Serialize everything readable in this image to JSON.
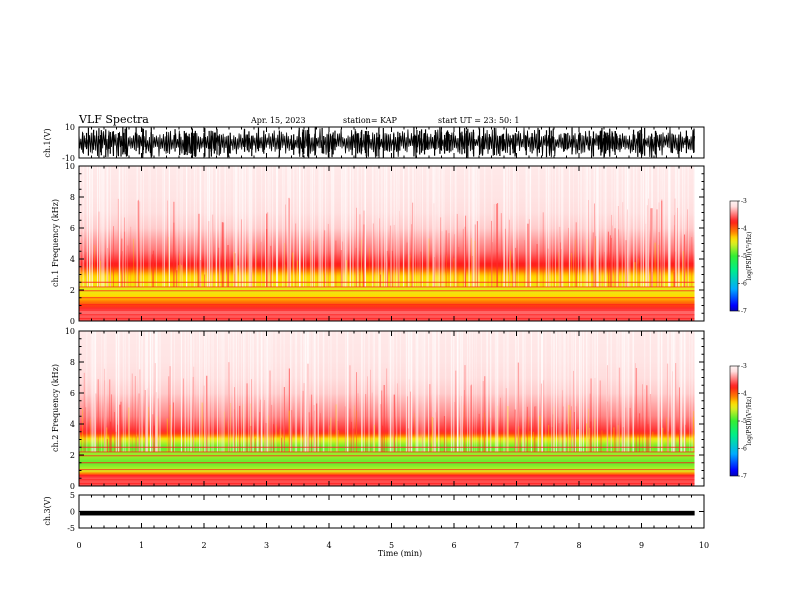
{
  "header": {
    "title": "VLF Spectra",
    "date": "Apr. 15, 2023",
    "station": "station= KAP",
    "start": "start  UT  =   23: 50: 1"
  },
  "colors": {
    "colormap": [
      "#08086e",
      "#0000ff",
      "#00aaff",
      "#00ee88",
      "#33ee33",
      "#ddee22",
      "#ffdd00",
      "#ff8800",
      "#ff1a1a",
      "#ffdede",
      "#ffffff"
    ],
    "waveform": "#000000",
    "axes": "#000000"
  },
  "chart_data": [
    {
      "type": "line",
      "name": "ch1-waveform",
      "ylabel": "ch.1(V)",
      "ylim": [
        -10,
        10
      ],
      "yticks": [
        "10",
        "-10"
      ],
      "xlim": [
        0,
        10
      ],
      "signal": "dense noisy waveform spanning roughly -10 to 10 V",
      "x_end": 9.85
    },
    {
      "type": "heatmap",
      "name": "ch1-spectrogram",
      "ylabel": "ch.1\nFrequency  (kHz)",
      "ylim": [
        0,
        10
      ],
      "yticks": [
        "0",
        "2",
        "4",
        "6",
        "8",
        "10"
      ],
      "xlim": [
        0,
        10
      ],
      "x_end": 9.85,
      "power_profile_logPSD": [
        {
          "f": 0.2,
          "v": -3.6
        },
        {
          "f": 0.6,
          "v": -3.5
        },
        {
          "f": 1.0,
          "v": -3.9
        },
        {
          "f": 1.5,
          "v": -4.3
        },
        {
          "f": 2.0,
          "v": -4.5
        },
        {
          "f": 2.5,
          "v": -4.4
        },
        {
          "f": 3.0,
          "v": -4.3
        },
        {
          "f": 3.5,
          "v": -3.8
        },
        {
          "f": 4.5,
          "v": -3.5
        },
        {
          "f": 6.0,
          "v": -3.25
        },
        {
          "f": 8.0,
          "v": -3.15
        },
        {
          "f": 10.0,
          "v": -3.1
        }
      ],
      "colorbar": {
        "range": [
          -7,
          -3
        ],
        "ticks": [
          "-3",
          "-4",
          "-5",
          "-6",
          "-7"
        ],
        "label": "log(PSD)(V²/Hz)"
      }
    },
    {
      "type": "heatmap",
      "name": "ch2-spectrogram",
      "ylabel": "ch.2\nFrequency  (kHz)",
      "ylim": [
        0,
        10
      ],
      "yticks": [
        "0",
        "2",
        "4",
        "6",
        "8",
        "10"
      ],
      "xlim": [
        0,
        10
      ],
      "x_end": 9.85,
      "power_profile_logPSD": [
        {
          "f": 0.2,
          "v": -3.6
        },
        {
          "f": 0.6,
          "v": -3.6
        },
        {
          "f": 1.0,
          "v": -4.6
        },
        {
          "f": 1.5,
          "v": -4.9
        },
        {
          "f": 2.0,
          "v": -4.7
        },
        {
          "f": 2.5,
          "v": -4.9
        },
        {
          "f": 3.0,
          "v": -4.5
        },
        {
          "f": 3.5,
          "v": -3.7
        },
        {
          "f": 4.5,
          "v": -3.45
        },
        {
          "f": 6.0,
          "v": -3.25
        },
        {
          "f": 8.0,
          "v": -3.15
        },
        {
          "f": 10.0,
          "v": -3.1
        }
      ],
      "colorbar": {
        "range": [
          -7,
          -3
        ],
        "ticks": [
          "-3",
          "-4",
          "-5",
          "-6",
          "-7"
        ],
        "label": "log(PSD)(V²/Hz)"
      }
    },
    {
      "type": "line",
      "name": "ch3-waveform",
      "ylabel": "ch.3(V)",
      "ylim": [
        -5,
        5
      ],
      "yticks": [
        "5",
        "0",
        "-5"
      ],
      "xlim": [
        0,
        10
      ],
      "x_end": 9.85,
      "signal": "thin flat band near -0.5 V"
    }
  ],
  "xaxis": {
    "label": "Time  (min)",
    "ticks": [
      "0",
      "1",
      "2",
      "3",
      "4",
      "5",
      "6",
      "7",
      "8",
      "9",
      "10"
    ],
    "range": [
      0,
      10
    ]
  }
}
